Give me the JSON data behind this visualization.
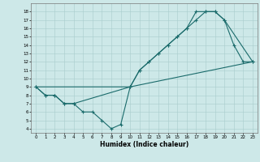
{
  "xlabel": "Humidex (Indice chaleur)",
  "bg_color": "#cde8e8",
  "line_color": "#1a6b6b",
  "grid_color": "#a8cccc",
  "xlim": [
    -0.5,
    23.5
  ],
  "ylim": [
    3.5,
    19
  ],
  "xticks": [
    0,
    1,
    2,
    3,
    4,
    5,
    6,
    7,
    8,
    9,
    10,
    11,
    12,
    13,
    14,
    15,
    16,
    17,
    18,
    19,
    20,
    21,
    22,
    23
  ],
  "yticks": [
    4,
    5,
    6,
    7,
    8,
    9,
    10,
    11,
    12,
    13,
    14,
    15,
    16,
    17,
    18
  ],
  "line1_x": [
    0,
    1,
    2,
    3,
    4,
    5,
    6,
    7,
    8,
    9,
    10,
    11,
    12,
    13,
    14,
    15,
    16,
    17,
    18,
    19,
    20,
    21,
    22,
    23
  ],
  "line1_y": [
    9,
    8,
    8,
    7,
    7,
    6,
    6,
    5,
    4,
    4.5,
    9,
    11,
    12,
    13,
    14,
    15,
    16,
    17,
    18,
    18,
    17,
    14,
    12,
    12
  ],
  "line2_x": [
    0,
    1,
    2,
    3,
    4,
    10,
    11,
    12,
    13,
    14,
    15,
    16,
    17,
    18,
    19,
    20,
    23
  ],
  "line2_y": [
    9,
    8,
    8,
    7,
    7,
    9,
    11,
    12,
    13,
    14,
    15,
    16,
    18,
    18,
    18,
    17,
    12
  ],
  "line3_x": [
    0,
    10,
    23
  ],
  "line3_y": [
    9,
    9,
    12
  ]
}
